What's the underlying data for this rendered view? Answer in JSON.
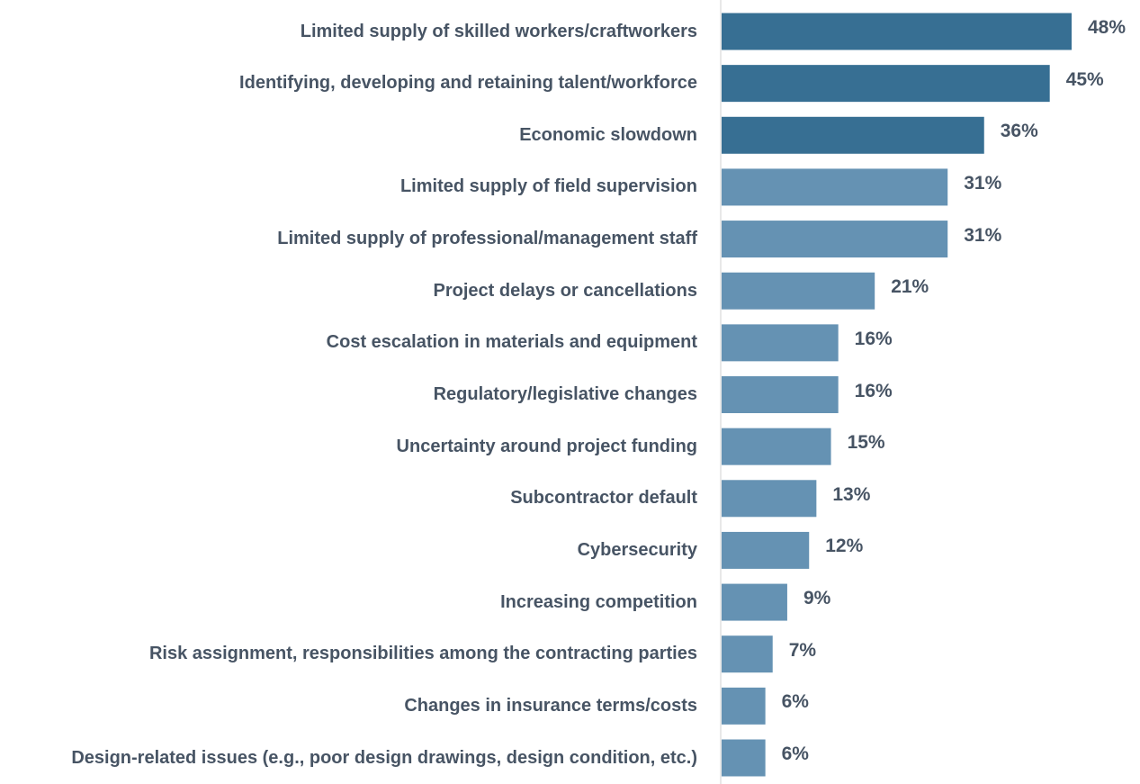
{
  "chart_data": {
    "type": "barh",
    "categories": [
      "Limited supply of skilled workers/craftworkers",
      "Identifying, developing and retaining talent/workforce",
      "Economic slowdown",
      "Limited supply of field supervision",
      "Limited supply of professional/management staff",
      "Project delays or cancellations",
      "Cost escalation in materials and equipment",
      "Regulatory/legislative changes",
      "Uncertainty around project funding",
      "Subcontractor default",
      "Cybersecurity",
      "Increasing competition",
      "Risk assignment, responsibilities among the contracting parties",
      "Changes in insurance terms/costs",
      "Design-related issues (e.g., poor design drawings, design condition, etc.)"
    ],
    "values": [
      48,
      45,
      36,
      31,
      31,
      21,
      16,
      16,
      15,
      13,
      12,
      9,
      7,
      6,
      6
    ],
    "value_labels": [
      "48%",
      "45%",
      "36%",
      "31%",
      "31%",
      "21%",
      "16%",
      "16%",
      "15%",
      "13%",
      "12%",
      "9%",
      "7%",
      "6%",
      "6%"
    ],
    "colors": [
      "#376f93",
      "#376f93",
      "#376f93",
      "#6592b3",
      "#6592b3",
      "#6592b3",
      "#6592b3",
      "#6592b3",
      "#6592b3",
      "#6592b3",
      "#6592b3",
      "#6592b3",
      "#6592b3",
      "#6592b3",
      "#6592b3"
    ]
  }
}
